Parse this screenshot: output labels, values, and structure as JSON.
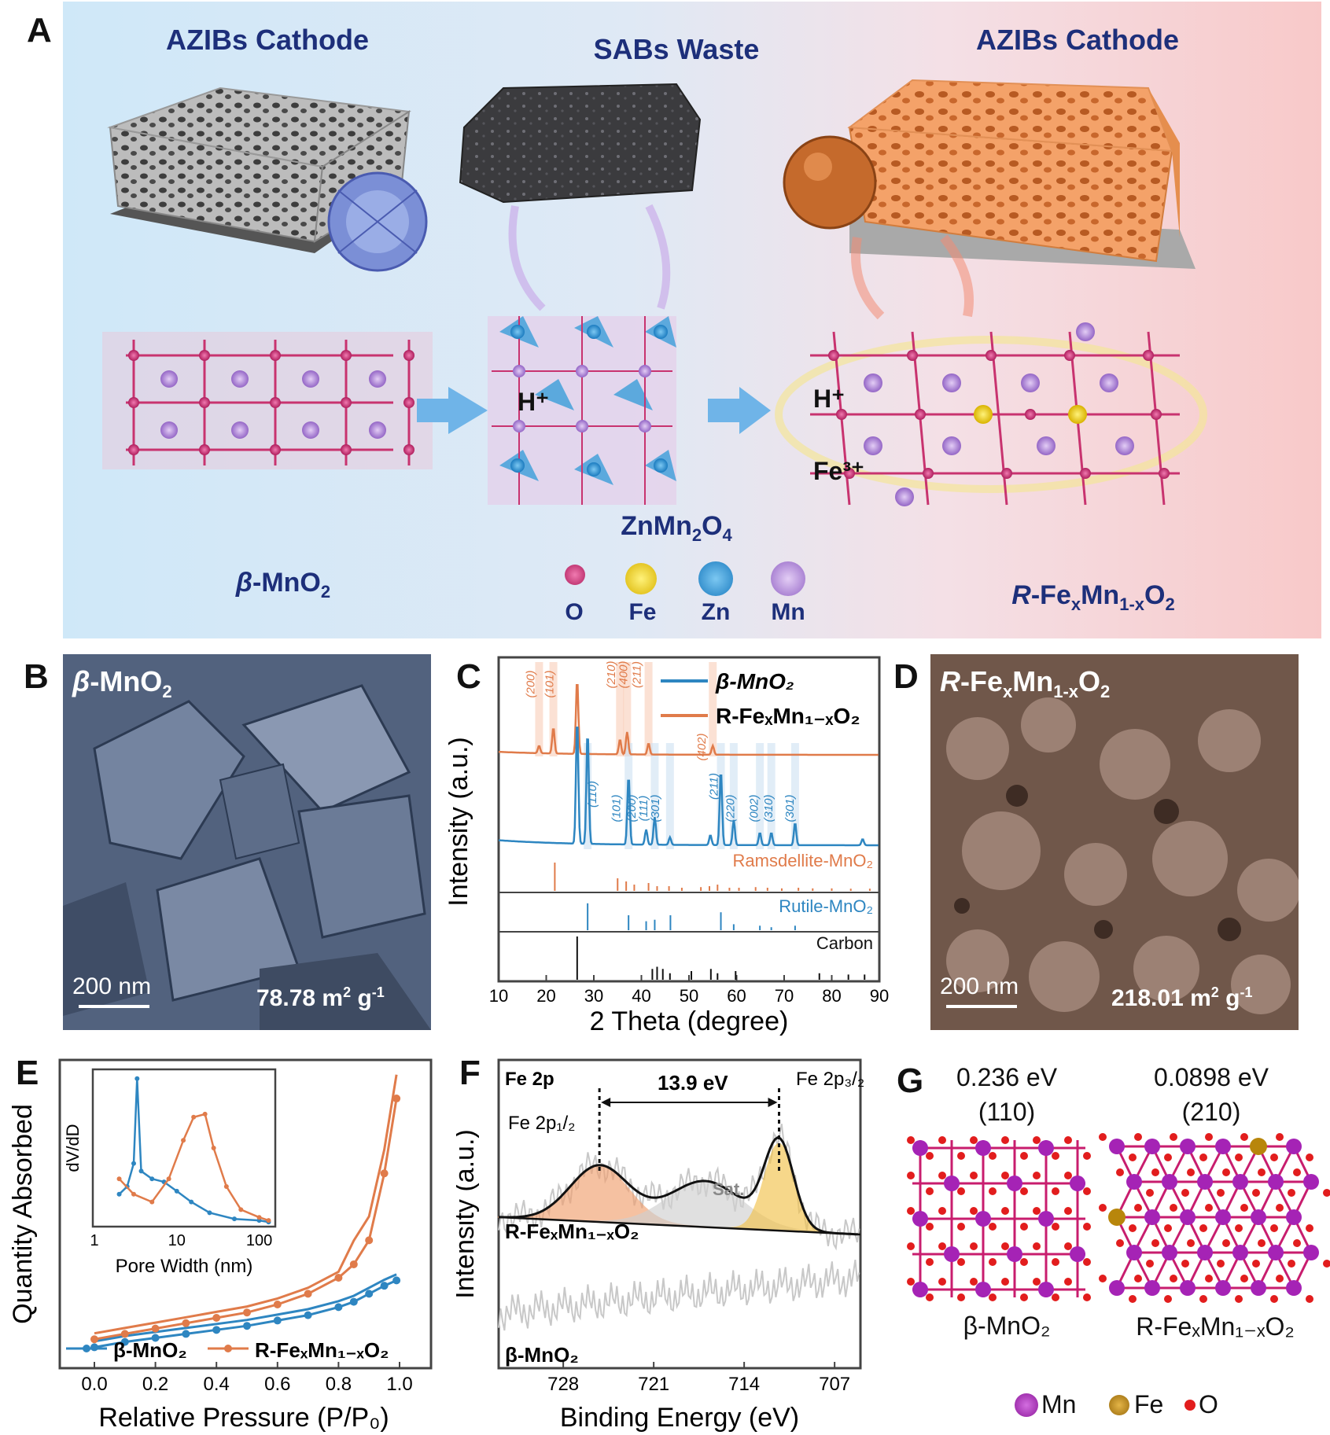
{
  "panel_a": {
    "letter": "A",
    "left_header": "AZIBs Cathode",
    "center_header": "SABs Waste",
    "right_header": "AZIBs Cathode",
    "left_crystal_prefix": "β",
    "left_crystal_mid": "-MnO",
    "left_crystal_sub": "2",
    "center_crystal_a": "ZnMn",
    "center_crystal_sub1": "2",
    "center_crystal_b": "O",
    "center_crystal_sub2": "4",
    "right_crystal_prefix": "R",
    "right_crystal_a": "-Fe",
    "right_crystal_sub1": "x",
    "right_crystal_b": "Mn",
    "right_crystal_sub2": "1-x",
    "right_crystal_c": "O",
    "right_crystal_sub3": "2",
    "left_arrow_label": "H⁺",
    "right_arrow_label_1": "H⁺",
    "right_arrow_label_2": "Fe³⁺",
    "atom_legend": [
      "O",
      "Fe",
      "Zn",
      "Mn"
    ],
    "atom_colors": [
      "#c8336f",
      "#f2d21e",
      "#2f9ad8",
      "#b98de0"
    ]
  },
  "panel_b": {
    "letter": "B",
    "title_prefix": "β",
    "title_mid": "-MnO",
    "title_sub": "2",
    "scale_bar": "200 nm",
    "surface_area_value": "78.78 m",
    "surface_area_sup": "2",
    "surface_area_unit": " g",
    "surface_area_sup2": "-1"
  },
  "panel_d": {
    "letter": "D",
    "title_prefix": "R",
    "title_a": "-Fe",
    "title_sub1": "x",
    "title_b": "Mn",
    "title_sub2": "1-x",
    "title_c": "O",
    "title_sub3": "2",
    "scale_bar": "200 nm",
    "surface_area_value": "218.01 m",
    "surface_area_sup": "2",
    "surface_area_unit": " g",
    "surface_area_sup2": "-1"
  },
  "panel_c": {
    "letter": "C",
    "ylabel": "Intensity (a.u.)",
    "xlabel": "2 Theta (degree)",
    "legend": [
      "β-MnO₂",
      "R-FeₓMn₁₋ₓO₂"
    ],
    "ref_labels": [
      "Ramsdellite-MnO₂",
      "Rutile-MnO₂",
      "Carbon"
    ],
    "orange_peak_labels": [
      "(200)",
      "(101)",
      "(210)",
      "(400)",
      "(211)",
      "(402)"
    ],
    "blue_peak_labels": [
      "(110)",
      "(101)",
      "(200)",
      "(111)",
      "(301)",
      "(211)",
      "(220)",
      "(002)",
      "(310)",
      "(301)"
    ],
    "colors": {
      "blue": "#2e86c1",
      "orange": "#e07b4a"
    }
  },
  "panel_e": {
    "letter": "E",
    "ylabel": "Quantity Absorbed",
    "xlabel": "Relative Pressure (P/P₀)",
    "inset_ylabel": "dV/dD",
    "inset_xlabel": "Pore Width (nm)",
    "legend": [
      "β-MnO₂",
      "R-FeₓMn₁₋ₓO₂"
    ]
  },
  "panel_f": {
    "letter": "F",
    "title": "Fe 2p",
    "ylabel": "Intensity (a.u.)",
    "xlabel": "Binding Energy (eV)",
    "peak_1": "Fe 2p₁/₂",
    "peak_2": "Fe 2p₃/₂",
    "splitting": "13.9 eV",
    "sat": "Sat.",
    "sample_top": "R-FeₓMn₁₋ₓO₂",
    "sample_bottom": "β-MnO₂"
  },
  "panel_g": {
    "letter": "G",
    "left_energy": "0.236 eV",
    "left_facet": "(110)",
    "right_energy": "0.0898 eV",
    "right_facet": "(210)",
    "left_name": "β-MnO₂",
    "right_name": "R-FeₓMn₁₋ₓO₂",
    "legend": [
      "Mn",
      "Fe",
      "O"
    ]
  },
  "chart_data": [
    {
      "panel": "C",
      "type": "line",
      "xlabel": "2 Theta (degree)",
      "ylabel": "Intensity (a.u.)",
      "xlim": [
        10,
        90
      ],
      "xticks": [
        10,
        20,
        30,
        40,
        50,
        60,
        70,
        80,
        90
      ],
      "series": [
        {
          "name": "R-FeₓMn₁₋ₓO₂",
          "peaks": [
            [
              18.5,
              0.1
            ],
            [
              21.5,
              0.35
            ],
            [
              26.5,
              1.0
            ],
            [
              35.5,
              0.2
            ],
            [
              37.0,
              0.3
            ],
            [
              41.5,
              0.15
            ],
            [
              55.0,
              0.12
            ]
          ]
        },
        {
          "name": "β-MnO₂",
          "peaks": [
            [
              26.5,
              1.0
            ],
            [
              28.7,
              0.9
            ],
            [
              37.3,
              0.55
            ],
            [
              41.0,
              0.12
            ],
            [
              42.8,
              0.22
            ],
            [
              46.0,
              0.06
            ],
            [
              54.5,
              0.08
            ],
            [
              56.7,
              0.6
            ],
            [
              59.4,
              0.2
            ],
            [
              64.9,
              0.1
            ],
            [
              67.3,
              0.1
            ],
            [
              72.3,
              0.18
            ],
            [
              86.5,
              0.05
            ]
          ]
        }
      ]
    },
    {
      "panel": "E",
      "type": "line",
      "xlabel": "Relative Pressure (P/P₀)",
      "ylabel": "Quantity Absorbed",
      "xlim": [
        0.0,
        1.0
      ],
      "xticks": [
        0.0,
        0.2,
        0.4,
        0.6,
        0.8,
        1.0
      ],
      "series": [
        {
          "name": "β-MnO₂",
          "x": [
            0.0,
            0.1,
            0.2,
            0.3,
            0.4,
            0.5,
            0.6,
            0.7,
            0.8,
            0.85,
            0.9,
            0.95,
            0.99
          ],
          "y": [
            0.05,
            0.07,
            0.085,
            0.1,
            0.115,
            0.13,
            0.15,
            0.17,
            0.2,
            0.22,
            0.25,
            0.28,
            0.3
          ]
        },
        {
          "name": "R-FeₓMn₁₋ₓO₂",
          "x": [
            0.0,
            0.1,
            0.2,
            0.3,
            0.4,
            0.5,
            0.6,
            0.7,
            0.8,
            0.85,
            0.9,
            0.95,
            0.99
          ],
          "y": [
            0.08,
            0.1,
            0.12,
            0.14,
            0.16,
            0.18,
            0.21,
            0.25,
            0.31,
            0.36,
            0.45,
            0.7,
            0.98
          ]
        }
      ]
    },
    {
      "panel": "F",
      "type": "line",
      "xlabel": "Binding Energy (eV)",
      "ylabel": "Intensity (a.u.)",
      "xlim": [
        733,
        705
      ],
      "xticks": [
        728,
        721,
        714,
        707
      ],
      "series": [
        {
          "name": "Fe 2p₁/₂",
          "center": 725.2,
          "height": 0.55
        },
        {
          "name": "Sat.",
          "center": 717.0,
          "height": 0.45
        },
        {
          "name": "Fe 2p₃/₂",
          "center": 711.3,
          "height": 0.85
        }
      ]
    }
  ]
}
